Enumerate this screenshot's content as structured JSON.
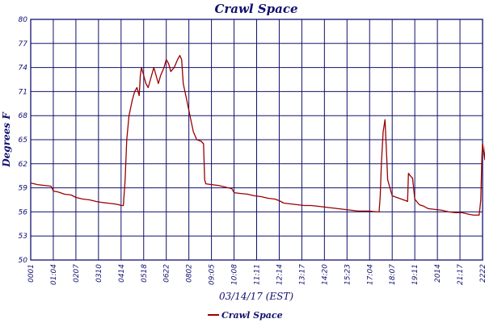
{
  "chart_data": {
    "type": "line",
    "title": "Crawl Space",
    "xlabel": "03/14/17 (EST)",
    "ylabel": "Degrees F",
    "ylim": [
      50,
      80
    ],
    "yticks": [
      "50",
      "53",
      "56",
      "59",
      "62",
      "65",
      "68",
      "71",
      "74",
      "77",
      "80"
    ],
    "xticks": [
      "0001",
      "01:04",
      "0207",
      "0310",
      "0414",
      "0518",
      "0622",
      "0802",
      "09:05",
      "10:08",
      "11:11",
      "12:14",
      "13:17",
      "14:20",
      "15:23",
      "17:04",
      "18:07",
      "19:11",
      "2014",
      "21:17",
      "2222"
    ],
    "grid": true,
    "legend_position": "bottom-left",
    "series_color": "#9b0000",
    "grid_color": "#10106e",
    "series": [
      {
        "name": "Crawl Space",
        "points": [
          [
            0.0,
            59.6
          ],
          [
            0.3,
            59.4
          ],
          [
            0.6,
            59.3
          ],
          [
            0.9,
            59.2
          ],
          [
            1.0,
            58.6
          ],
          [
            1.2,
            58.5
          ],
          [
            1.5,
            58.2
          ],
          [
            1.8,
            58.1
          ],
          [
            2.0,
            57.8
          ],
          [
            2.3,
            57.6
          ],
          [
            2.6,
            57.5
          ],
          [
            2.9,
            57.3
          ],
          [
            3.1,
            57.2
          ],
          [
            3.4,
            57.1
          ],
          [
            3.7,
            57.0
          ],
          [
            3.9,
            56.9
          ],
          [
            4.0,
            56.8
          ],
          [
            4.1,
            56.8
          ],
          [
            4.18,
            60.0
          ],
          [
            4.25,
            65.0
          ],
          [
            4.35,
            68.0
          ],
          [
            4.5,
            70.0
          ],
          [
            4.6,
            71.0
          ],
          [
            4.7,
            71.5
          ],
          [
            4.8,
            70.5
          ],
          [
            4.85,
            73.0
          ],
          [
            4.9,
            74.0
          ],
          [
            5.0,
            73.0
          ],
          [
            5.1,
            72.0
          ],
          [
            5.2,
            71.5
          ],
          [
            5.3,
            72.5
          ],
          [
            5.45,
            74.0
          ],
          [
            5.55,
            73.0
          ],
          [
            5.65,
            72.0
          ],
          [
            5.75,
            73.0
          ],
          [
            5.9,
            74.0
          ],
          [
            6.0,
            75.0
          ],
          [
            6.1,
            74.5
          ],
          [
            6.2,
            73.5
          ],
          [
            6.35,
            74.0
          ],
          [
            6.5,
            75.0
          ],
          [
            6.6,
            75.5
          ],
          [
            6.68,
            75.0
          ],
          [
            6.75,
            72.0
          ],
          [
            6.9,
            70.0
          ],
          [
            7.05,
            68.0
          ],
          [
            7.2,
            66.0
          ],
          [
            7.35,
            65.0
          ],
          [
            7.55,
            64.8
          ],
          [
            7.65,
            64.5
          ],
          [
            7.7,
            60.0
          ],
          [
            7.75,
            59.5
          ],
          [
            8.0,
            59.4
          ],
          [
            8.3,
            59.3
          ],
          [
            8.6,
            59.1
          ],
          [
            8.9,
            58.9
          ],
          [
            9.0,
            58.4
          ],
          [
            9.3,
            58.3
          ],
          [
            9.6,
            58.2
          ],
          [
            9.9,
            58.0
          ],
          [
            10.2,
            57.9
          ],
          [
            10.5,
            57.7
          ],
          [
            10.8,
            57.6
          ],
          [
            11.0,
            57.4
          ],
          [
            11.2,
            57.1
          ],
          [
            11.5,
            57.0
          ],
          [
            11.8,
            56.9
          ],
          [
            12.1,
            56.8
          ],
          [
            12.4,
            56.8
          ],
          [
            12.7,
            56.7
          ],
          [
            13.0,
            56.6
          ],
          [
            13.3,
            56.5
          ],
          [
            13.6,
            56.4
          ],
          [
            13.9,
            56.3
          ],
          [
            14.2,
            56.2
          ],
          [
            14.5,
            56.1
          ],
          [
            14.8,
            56.1
          ],
          [
            15.0,
            56.1
          ],
          [
            15.3,
            56.0
          ],
          [
            15.42,
            56.0
          ],
          [
            15.47,
            58.0
          ],
          [
            15.52,
            62.0
          ],
          [
            15.6,
            66.0
          ],
          [
            15.68,
            67.5
          ],
          [
            15.74,
            64.0
          ],
          [
            15.8,
            60.0
          ],
          [
            15.9,
            59.0
          ],
          [
            16.0,
            58.0
          ],
          [
            16.3,
            57.7
          ],
          [
            16.6,
            57.4
          ],
          [
            16.68,
            57.3
          ],
          [
            16.72,
            60.8
          ],
          [
            16.8,
            60.5
          ],
          [
            16.9,
            60.2
          ],
          [
            17.0,
            57.6
          ],
          [
            17.2,
            56.9
          ],
          [
            17.4,
            56.7
          ],
          [
            17.6,
            56.4
          ],
          [
            17.9,
            56.3
          ],
          [
            18.2,
            56.2
          ],
          [
            18.5,
            56.0
          ],
          [
            18.8,
            55.9
          ],
          [
            19.1,
            55.9
          ],
          [
            19.4,
            55.7
          ],
          [
            19.6,
            55.6
          ],
          [
            19.85,
            55.6
          ],
          [
            19.92,
            57.5
          ],
          [
            19.97,
            63.0
          ],
          [
            20.0,
            64.5
          ],
          [
            20.05,
            63.5
          ],
          [
            20.1,
            62.5
          ],
          [
            20.15,
            66.0
          ],
          [
            20.22,
            68.5
          ],
          [
            20.3,
            69.0
          ],
          [
            20.35,
            67.0
          ],
          [
            20.42,
            64.0
          ],
          [
            20.5,
            62.0
          ],
          [
            20.6,
            61.5
          ],
          [
            20.7,
            61.0
          ],
          [
            20.75,
            62.0
          ],
          [
            20.8,
            67.0
          ],
          [
            20.86,
            69.0
          ],
          [
            20.9,
            69.5
          ],
          [
            20.96,
            69.3
          ]
        ]
      }
    ]
  }
}
